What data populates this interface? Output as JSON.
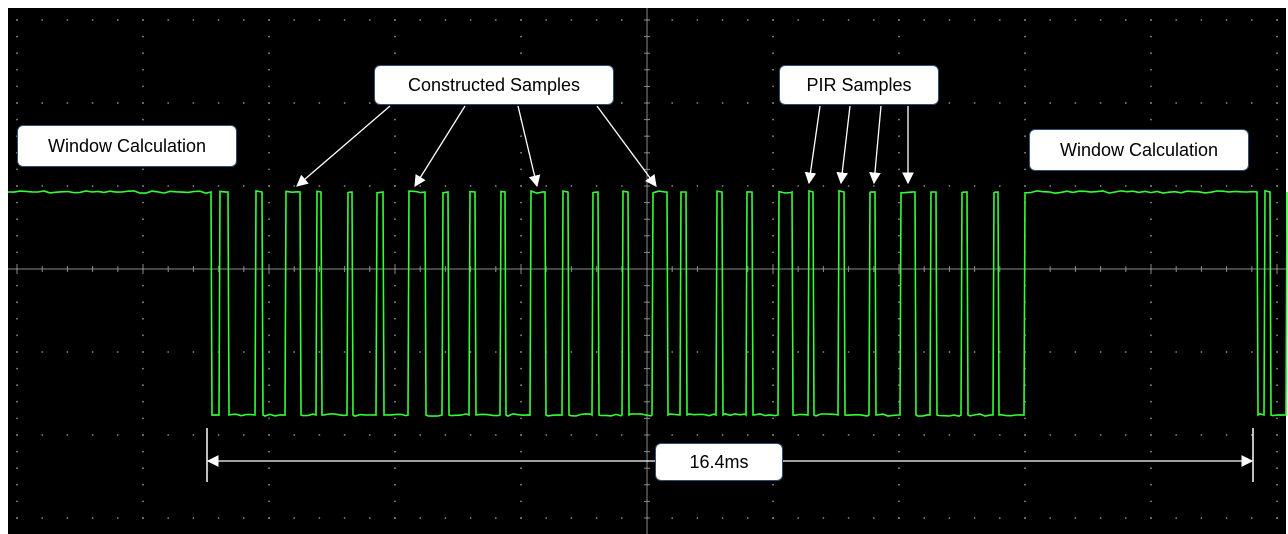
{
  "labels": {
    "window_left": "Window Calculation",
    "window_right": "Window Calculation",
    "constructed": "Constructed Samples",
    "pir": "PIR Samples",
    "duration": "16.4ms"
  },
  "colors": {
    "background": "#000000",
    "trace": "#33ff33",
    "grid": "#8a8a8a",
    "annotation": "#ffffff"
  },
  "chart_data": {
    "type": "line",
    "title": "",
    "xlabel": "",
    "ylabel": "",
    "grid": true,
    "trace_levels": {
      "high": 1,
      "low": 0
    },
    "measurement": {
      "label": "16.4ms",
      "start_ms": 0,
      "end_ms": 16.4
    },
    "annotations": [
      "Window Calculation",
      "Constructed Samples",
      "PIR Samples",
      "Window Calculation"
    ]
  }
}
